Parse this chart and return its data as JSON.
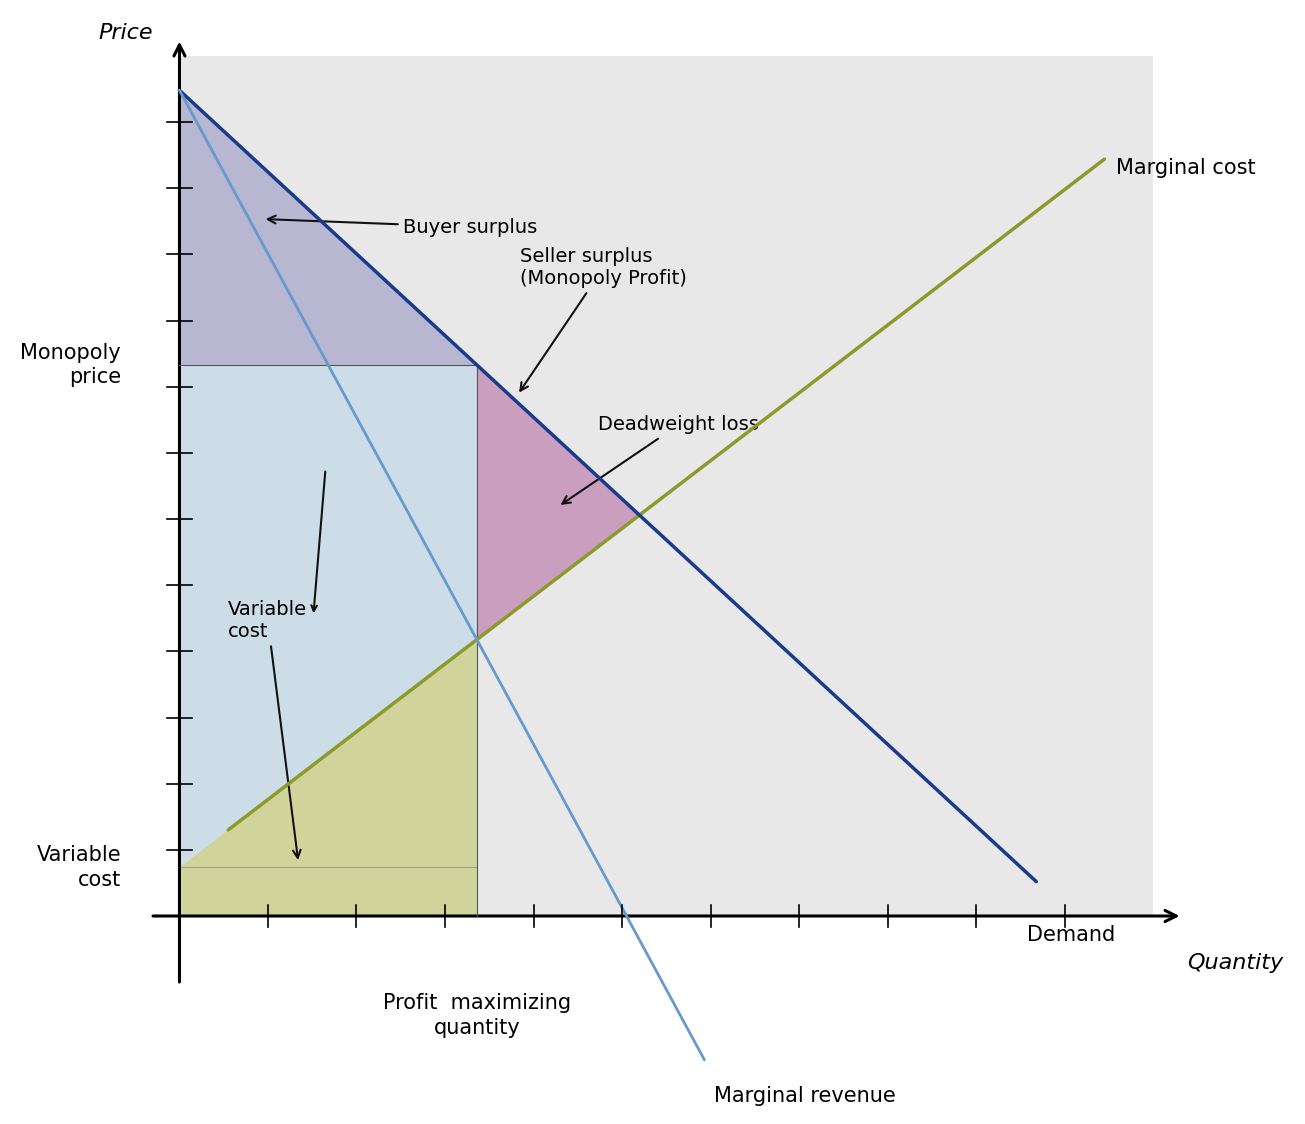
{
  "bg_color": "#ffffff",
  "plot_bg": "#e8e8e8",
  "xlim": [
    0,
    10
  ],
  "ylim": [
    0,
    10
  ],
  "d_x0": 0.0,
  "d_x1": 8.8,
  "d_y0": 9.6,
  "d_y1": 0.4,
  "demand_color": "#1a3a8a",
  "demand_lw": 2.5,
  "mc_x0": 0.5,
  "mc_x1": 9.5,
  "mc_y0": 1.0,
  "mc_y1": 8.8,
  "mc_color": "#8b9a2a",
  "mc_lw": 2.5,
  "mr_color": "#6699cc",
  "mr_lw": 2.0,
  "buyer_surplus_color": "#8888bb",
  "buyer_surplus_alpha": 0.5,
  "seller_surplus_color": "#bb77aa",
  "seller_surplus_alpha": 0.65,
  "variable_cost_color": "#c8cc7a",
  "variable_cost_alpha": 0.7,
  "light_blue_color": "#b8d4e8",
  "light_blue_alpha": 0.55,
  "xlabel": "Quantity",
  "ylabel": "Price",
  "monopoly_price_label": "Monopoly\nprice",
  "variable_cost_label": "Variable\ncost",
  "pmq_label": "Profit  maximizing\nquantity",
  "buyer_surplus_label": "Buyer surplus",
  "seller_surplus_label": "Seller surplus\n(Monopoly Profit)",
  "deadweight_label": "Deadweight loss",
  "mr_label": "Marginal revenue",
  "mc_label": "Marginal cost",
  "demand_label": "Demand",
  "vc_region_label": "Variable\ncost",
  "n_yticks": 13,
  "n_xticks": 11,
  "arrow_color": "#111111",
  "fontsize_label": 15,
  "fontsize_axis": 16,
  "fontsize_ann": 14
}
